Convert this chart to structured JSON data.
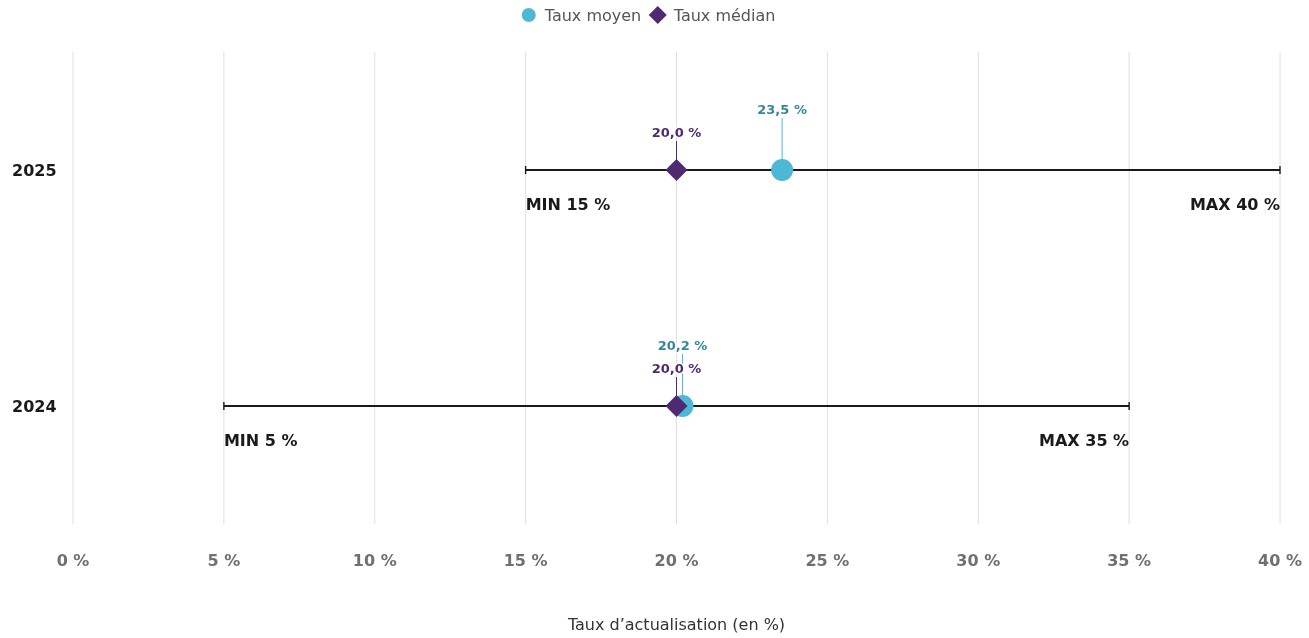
{
  "chart_data": {
    "type": "scatter",
    "orientation": "horizontal",
    "categories": [
      "2025",
      "2024"
    ],
    "xlabel": "Taux d’actualisation (en %)",
    "xlim": [
      0,
      40
    ],
    "xticks": [
      {
        "value": 0,
        "label": "0 %"
      },
      {
        "value": 5,
        "label": "5 %"
      },
      {
        "value": 10,
        "label": "10 %"
      },
      {
        "value": 15,
        "label": "15 %"
      },
      {
        "value": 20,
        "label": "20 %"
      },
      {
        "value": 25,
        "label": "25 %"
      },
      {
        "value": 30,
        "label": "30 %"
      },
      {
        "value": 35,
        "label": "35 %"
      },
      {
        "value": 40,
        "label": "40 %"
      }
    ],
    "grid": "x",
    "legend": "top",
    "series": [
      {
        "type": "bar",
        "color": "#1a1a1a",
        "base": [
          15,
          5
        ],
        "values": [
          25,
          30
        ]
      },
      {
        "name": "Taux moyen",
        "marker": "circle",
        "color": "#4cb8d6",
        "values": [
          23.5,
          20.2
        ],
        "value_labels": [
          "23,5 %",
          "20,2 %"
        ]
      },
      {
        "name": "Taux médian",
        "marker": "diamond",
        "color": "#4f2a70",
        "values": [
          20,
          20
        ],
        "value_labels": [
          "20,0 %",
          "20,0 %"
        ]
      }
    ],
    "annotations": [
      "MIN 15 %",
      "MAX 40 %",
      "MIN 5 %",
      "MAX 35 %"
    ]
  }
}
